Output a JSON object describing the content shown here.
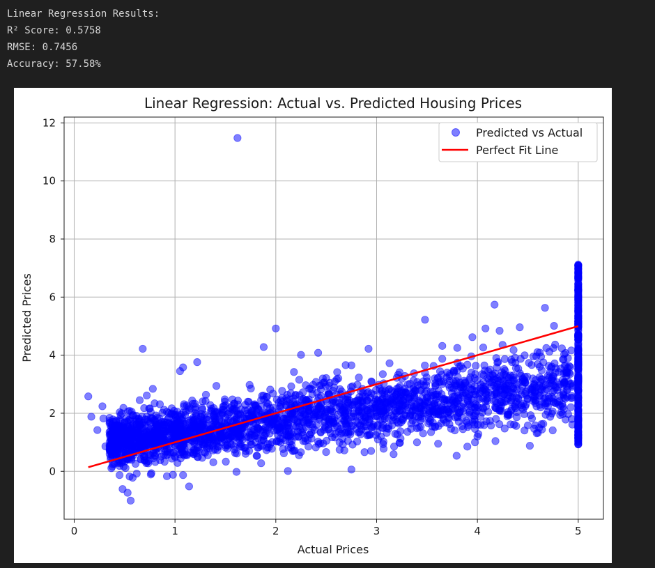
{
  "output": {
    "lines": [
      "Linear Regression Results:",
      "R² Score: 0.5758",
      "RMSE: 0.7456",
      "Accuracy: 57.58%"
    ]
  },
  "chart_data": {
    "type": "scatter",
    "title": "Linear Regression: Actual vs. Predicted Housing Prices",
    "xlabel": "Actual Prices",
    "ylabel": "Predicted Prices",
    "xlim": [
      -0.1,
      5.25
    ],
    "ylim": [
      -1.65,
      12.2
    ],
    "xticks": [
      0,
      1,
      2,
      3,
      4,
      5
    ],
    "yticks": [
      0,
      2,
      4,
      6,
      8,
      10,
      12
    ],
    "grid": true,
    "legend_position": "top-right",
    "series": [
      {
        "name": "Predicted vs Actual",
        "kind": "scatter",
        "color": "#0000ff",
        "opacity": 0.5,
        "points": [
          [
            0.14,
            2.58
          ],
          [
            0.17,
            1.88
          ],
          [
            0.23,
            1.42
          ],
          [
            0.28,
            2.24
          ],
          [
            0.31,
            0.86
          ],
          [
            0.29,
            1.82
          ],
          [
            0.45,
            1.78
          ],
          [
            0.52,
            1.82
          ],
          [
            0.55,
            2.08
          ],
          [
            0.6,
            1.21
          ],
          [
            0.65,
            2.45
          ],
          [
            0.68,
            4.22
          ],
          [
            0.72,
            2.61
          ],
          [
            0.78,
            2.84
          ],
          [
            0.85,
            2.31
          ],
          [
            0.92,
            2.05
          ],
          [
            1.05,
            3.45
          ],
          [
            1.08,
            3.58
          ],
          [
            1.22,
            3.76
          ],
          [
            1.62,
            11.48
          ],
          [
            1.88,
            4.28
          ],
          [
            2.0,
            4.92
          ],
          [
            2.25,
            4.01
          ],
          [
            2.42,
            4.08
          ],
          [
            2.18,
            3.42
          ],
          [
            2.5,
            3.21
          ],
          [
            2.75,
            3.65
          ],
          [
            2.92,
            4.22
          ],
          [
            3.48,
            5.22
          ],
          [
            3.8,
            4.25
          ],
          [
            3.95,
            4.62
          ],
          [
            4.08,
            4.92
          ],
          [
            4.22,
            4.84
          ],
          [
            4.17,
            5.74
          ],
          [
            4.42,
            4.96
          ],
          [
            4.67,
            5.63
          ],
          [
            4.76,
            5.01
          ],
          [
            0.45,
            -0.13
          ],
          [
            0.48,
            -0.61
          ],
          [
            0.53,
            -0.74
          ],
          [
            0.56,
            -1.01
          ],
          [
            0.55,
            -0.18
          ],
          [
            0.58,
            -0.22
          ],
          [
            0.62,
            -0.08
          ],
          [
            0.76,
            -0.11
          ],
          [
            0.92,
            -0.17
          ],
          [
            0.98,
            -0.12
          ],
          [
            1.08,
            -0.13
          ],
          [
            1.14,
            -0.52
          ],
          [
            1.38,
            0.31
          ],
          [
            1.61,
            -0.02
          ],
          [
            1.5,
            0.82
          ],
          [
            2.12,
            0.01
          ],
          [
            2.08,
            0.62
          ],
          [
            2.23,
            0.55
          ],
          [
            2.42,
            1.02
          ],
          [
            2.68,
            0.72
          ],
          [
            2.75,
            0.06
          ],
          [
            2.88,
            0.66
          ],
          [
            3.1,
            1.48
          ],
          [
            3.4,
            1.48
          ],
          [
            3.61,
            0.95
          ],
          [
            3.69,
            1.68
          ],
          [
            3.9,
            0.85
          ],
          [
            4.0,
            1.2
          ],
          [
            4.3,
            1.95
          ],
          [
            4.5,
            1.58
          ],
          [
            4.52,
            0.88
          ],
          [
            1.8,
            1.0
          ],
          [
            1.65,
            1.22
          ],
          [
            1.3,
            0.64
          ],
          [
            1.05,
            0.58
          ],
          [
            3.5,
            3.1
          ],
          [
            3.7,
            3.4
          ],
          [
            3.82,
            3.61
          ],
          [
            3.92,
            2.02
          ],
          [
            4.1,
            3.2
          ],
          [
            4.3,
            2.5
          ],
          [
            4.55,
            3.2
          ],
          [
            4.7,
            3.3
          ],
          [
            4.85,
            2.65
          ],
          [
            4.9,
            3.1
          ],
          [
            3.3,
            2.1
          ],
          [
            3.2,
            3.22
          ]
        ]
      },
      {
        "name": "Perfect Fit Line",
        "kind": "line",
        "color": "#ff0000",
        "points": [
          [
            0.14,
            0.14
          ],
          [
            5.0,
            5.0
          ]
        ]
      }
    ]
  }
}
